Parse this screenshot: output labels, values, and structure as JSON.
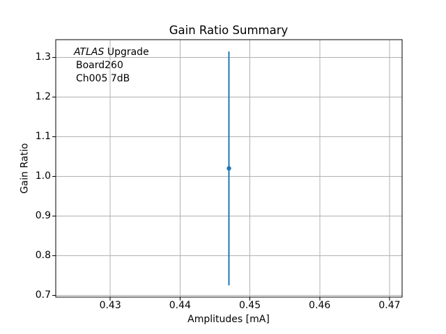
{
  "chart_data": {
    "type": "scatter",
    "subtype": "errorbar",
    "title": "Gain Ratio Summary",
    "xlabel": "Amplitudes [mA]",
    "ylabel": "Gain Ratio",
    "xlim": [
      0.4222,
      0.4718
    ],
    "ylim": [
      0.6955,
      1.3445
    ],
    "grid": true,
    "legend_position": "none",
    "xticks": [
      {
        "value": 0.43,
        "label": "0.43"
      },
      {
        "value": 0.44,
        "label": "0.44"
      },
      {
        "value": 0.45,
        "label": "0.45"
      },
      {
        "value": 0.46,
        "label": "0.46"
      },
      {
        "value": 0.47,
        "label": "0.47"
      }
    ],
    "yticks": [
      {
        "value": 0.7,
        "label": "0.7"
      },
      {
        "value": 0.8,
        "label": "0.8"
      },
      {
        "value": 0.9,
        "label": "0.9"
      },
      {
        "value": 1.0,
        "label": "1.0"
      },
      {
        "value": 1.1,
        "label": "1.1"
      },
      {
        "value": 1.2,
        "label": "1.2"
      },
      {
        "value": 1.3,
        "label": "1.3"
      }
    ],
    "series": [
      {
        "name": "Gain Ratio",
        "color": "#1f77b4",
        "marker": "point",
        "points": [
          {
            "x": 0.447,
            "y": 1.02,
            "yerr_low": 0.295,
            "yerr_high": 0.295
          }
        ]
      }
    ],
    "annotation": {
      "experiment": "ATLAS",
      "experiment_label": "Upgrade",
      "board": "Board260",
      "channel": "Ch005 7dB"
    },
    "colors": {
      "data": "#1f77b4",
      "grid": "#b0b0b0",
      "axis": "#000000",
      "background": "#ffffff"
    }
  }
}
